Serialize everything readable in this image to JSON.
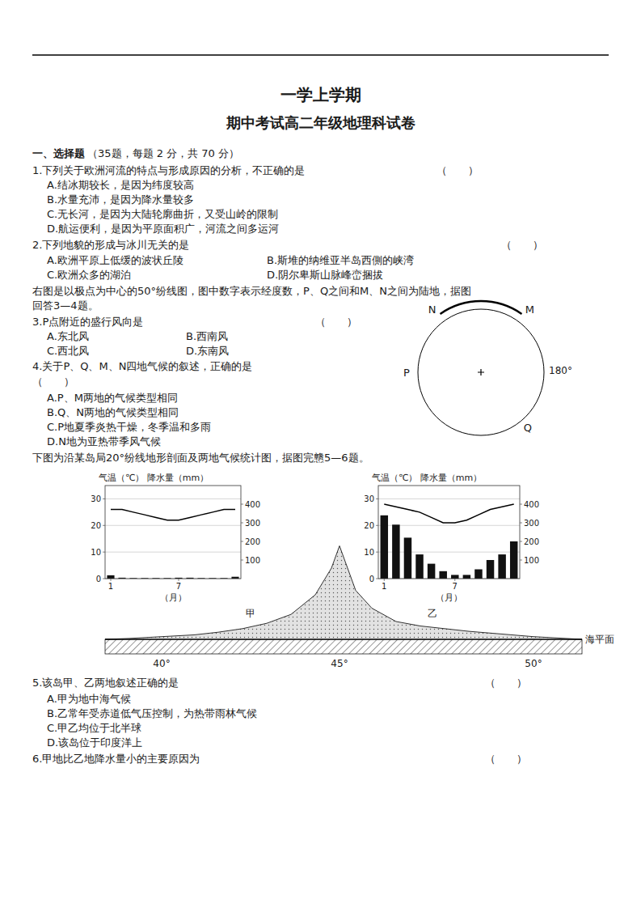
{
  "title": "一学上学期",
  "subtitle": "期中考试高二年级地理科试卷",
  "annotations": [
    "一、选择题",
    "（35题，每题 2 分，共 70 分）",
    "1.下列关于欧洲河流的特点与形成原因的分析，不正确的是",
    "（　　）",
    "A.结冰期较长，是因为纬度较高",
    "B.水量充沛，是因为降水量较多",
    "C.无长河，是因为大陆轮廓曲折，又受山岭的限制",
    "D.航运便利，是因为平原面积广，河流之间多运河",
    "2.下列地貌的形成与冰川无关的是",
    "（　　）",
    "A.欧洲平原上低缓的波状丘陵",
    "B.斯堆的纳维亚半岛西側的峡湾",
    "C.欧洲众多的湖泊",
    "D.阴尔卑斯山脉峰峦捆拔",
    "右图是以极点为中心的50°纷线图，图中数字表示经度数，P、Q之间和M、N之间为陆地，据图",
    "回答3—4题。",
    "3.P点附近的盛行风向是",
    "（　　）",
    "A.东北风",
    "B.西南风",
    "C.西北风",
    "D.东南风",
    "4.关于P、Q、M、N四地气候的叙述，正确的是",
    "（　　）",
    "A.P、M两地的气候类型相同",
    "B.Q、N两地的气候类型相同",
    "C.P地夏季炎热干燥，冬季温和多雨",
    "D.N地为亚热带季风气候",
    "下图为沿某岛局20°纷线地形剖面及两地气候统计图，据图完戆5—6题。",
    "5.该岛甲、乙两地叙述正确的是",
    "（　　）",
    "A.甲为地中海气候",
    "B.乙常年受赤道低气压控制，为热带雨林气候",
    "C.甲乙均位于北半球",
    "D.该岛位于印度洋上",
    "6.甲地比乙地降水量小的主要原因为",
    "（　　）",
    "180°",
    "N",
    "M",
    "P",
    "Q",
    "海平面",
    "甲",
    "乙",
    "40°",
    "45°",
    "50°"
  ],
  "chart_data": [
    {
      "type": "bar",
      "title": "气温（℃）  降水量（mm）",
      "x_label": "（月）",
      "categories": [
        1,
        null,
        null,
        null,
        null,
        null,
        7,
        null,
        null,
        null,
        null,
        null
      ],
      "ylim": [
        0,
        35
      ],
      "yticks": [
        0,
        10,
        20,
        30
      ],
      "y2lim": [
        0,
        500
      ],
      "y2ticks": [
        100,
        200,
        300,
        400
      ],
      "grid": true,
      "series": [
        {
          "type": "bar",
          "axis": "y2",
          "color": "#111111",
          "values": [
            18,
            5,
            3,
            3,
            3,
            3,
            5,
            5,
            3,
            3,
            3,
            10
          ]
        },
        {
          "type": "line",
          "color": "#000000",
          "values": [
            26,
            26,
            25,
            24,
            23,
            22,
            22,
            23,
            24,
            25,
            26,
            26
          ]
        }
      ]
    },
    {
      "type": "bar",
      "title": "气温（℃） 降水量（mm）",
      "x_label": "（月）",
      "categories": [
        1,
        null,
        null,
        null,
        null,
        null,
        7,
        null,
        null,
        null,
        null,
        null
      ],
      "ylim": [
        0,
        35
      ],
      "yticks": [
        0,
        10,
        20,
        30
      ],
      "y2lim": [
        0,
        500
      ],
      "y2ticks": [
        100,
        200,
        300,
        400
      ],
      "grid": true,
      "series": [
        {
          "type": "bar",
          "axis": "y2",
          "color": "#111111",
          "values": [
            340,
            290,
            220,
            130,
            80,
            40,
            20,
            20,
            50,
            100,
            130,
            200
          ]
        },
        {
          "type": "line",
          "color": "#000000",
          "values": [
            28,
            27,
            26,
            25,
            23,
            21,
            21,
            22,
            24,
            26,
            27,
            28
          ]
        }
      ]
    }
  ]
}
